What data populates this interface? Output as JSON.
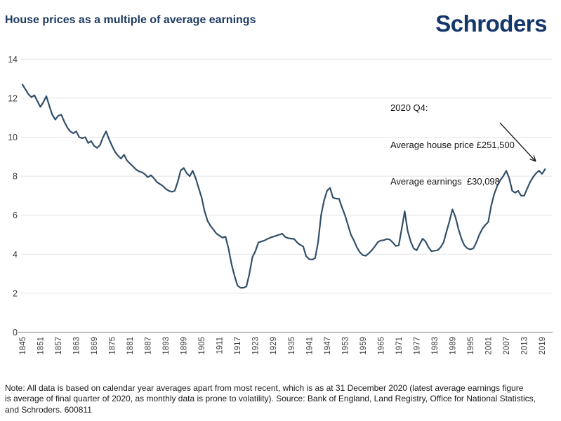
{
  "header": {
    "title": "House prices as a multiple of average earnings",
    "logo_text": "Schroders"
  },
  "annotation": {
    "line1": "2020 Q4:",
    "line2": "Average house price £251,500",
    "line3": "Average earnings  £30,098"
  },
  "note": {
    "lines": [
      "Note: All data is based on calendar year averages apart from most recent, which is as at 31 December 2020 (latest average earnings figure",
      "is average of final quarter of 2020, as monthly data is prone to volatility). Source: Bank of England, Land Registry, Office for National Statistics,",
      "and Schroders. 600811"
    ]
  },
  "colors": {
    "title_navy": "#1d3a60",
    "logo_navy": "#13366b",
    "line": "#33506a",
    "gridline": "#e4e4e4",
    "axis_line": "#9f9f9f",
    "tick_text": "#3c3c3c",
    "annotation_text": "#151515"
  },
  "chart_data": {
    "type": "line",
    "title": "House prices as a multiple of average earnings",
    "xlabel": "",
    "ylabel": "",
    "x_range": [
      1845,
      2020
    ],
    "ylim": [
      0,
      14
    ],
    "y_ticks": [
      0,
      2,
      4,
      6,
      8,
      10,
      12,
      14
    ],
    "grid": "horizontal",
    "legend": "none",
    "line_color": "#33506a",
    "x_tick_labels": [
      "1845",
      "1851",
      "1857",
      "1863",
      "1869",
      "1875",
      "1881",
      "1887",
      "1893",
      "1899",
      "1905",
      "1911",
      "1917",
      "1923",
      "1929",
      "1935",
      "1941",
      "1947",
      "1953",
      "1959",
      "1965",
      "1971",
      "1977",
      "1983",
      "1989",
      "1995",
      "2001",
      "2007",
      "2013",
      "2019"
    ],
    "values": [
      12.7,
      12.45,
      12.2,
      12.05,
      12.15,
      11.85,
      11.55,
      11.8,
      12.1,
      11.6,
      11.15,
      10.9,
      11.1,
      11.15,
      10.8,
      10.5,
      10.3,
      10.2,
      10.3,
      10.0,
      9.95,
      10.0,
      9.7,
      9.8,
      9.55,
      9.45,
      9.6,
      10.0,
      10.3,
      9.9,
      9.55,
      9.25,
      9.05,
      8.9,
      9.1,
      8.8,
      8.65,
      8.5,
      8.35,
      8.25,
      8.2,
      8.1,
      7.95,
      8.05,
      7.9,
      7.7,
      7.6,
      7.5,
      7.35,
      7.25,
      7.2,
      7.25,
      7.7,
      8.3,
      8.42,
      8.15,
      8.0,
      8.28,
      7.9,
      7.4,
      6.9,
      6.2,
      5.7,
      5.45,
      5.25,
      5.05,
      4.95,
      4.85,
      4.9,
      4.3,
      3.5,
      2.9,
      2.4,
      2.28,
      2.28,
      2.35,
      3.0,
      3.85,
      4.15,
      4.6,
      4.65,
      4.7,
      4.78,
      4.85,
      4.9,
      4.95,
      5.0,
      5.05,
      4.88,
      4.82,
      4.8,
      4.78,
      4.6,
      4.48,
      4.4,
      3.9,
      3.75,
      3.72,
      3.8,
      4.6,
      6.0,
      6.75,
      7.25,
      7.4,
      6.9,
      6.85,
      6.85,
      6.4,
      6.0,
      5.5,
      5.0,
      4.7,
      4.35,
      4.1,
      3.95,
      3.92,
      4.05,
      4.2,
      4.4,
      4.62,
      4.7,
      4.72,
      4.78,
      4.75,
      4.6,
      4.42,
      4.45,
      5.3,
      6.2,
      5.2,
      4.65,
      4.3,
      4.2,
      4.5,
      4.8,
      4.65,
      4.35,
      4.15,
      4.18,
      4.2,
      4.35,
      4.6,
      5.15,
      5.7,
      6.3,
      5.9,
      5.3,
      4.8,
      4.45,
      4.3,
      4.25,
      4.3,
      4.6,
      5.0,
      5.3,
      5.5,
      5.65,
      6.5,
      7.1,
      7.5,
      7.8,
      8.0,
      8.28,
      7.9,
      7.25,
      7.15,
      7.25,
      7.0,
      7.0,
      7.35,
      7.7,
      7.95,
      8.15,
      8.28,
      8.12,
      8.36
    ],
    "annotation": {
      "text": [
        "2020 Q4:",
        "Average house price £251,500",
        "Average earnings  £30,098"
      ],
      "arrow_points_to_year": 2020
    }
  }
}
